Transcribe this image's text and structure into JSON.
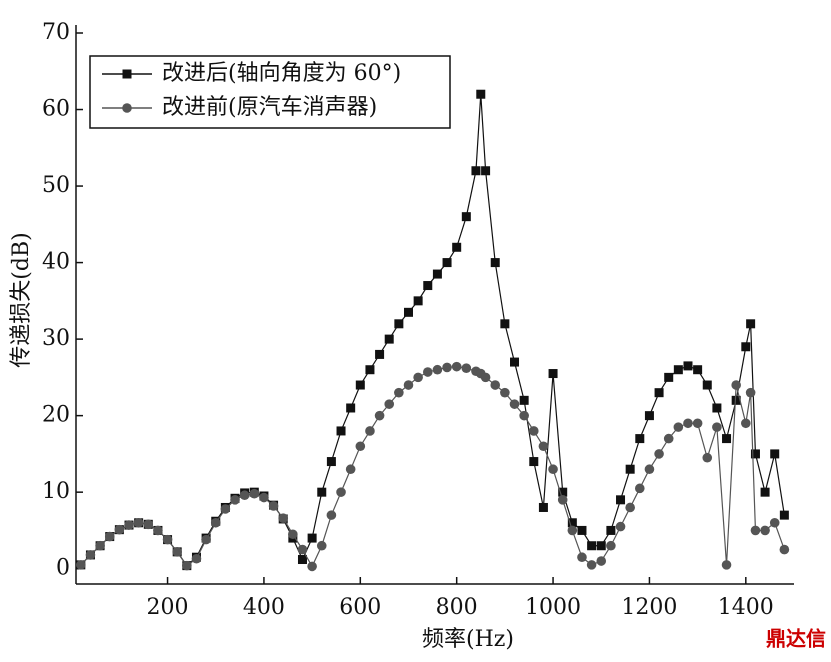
{
  "chart_data": {
    "type": "line",
    "xlabel": "频率(Hz)",
    "ylabel": "传递损失(dB)",
    "watermark": "鼎达信",
    "x": [
      20,
      40,
      60,
      80,
      100,
      120,
      140,
      160,
      180,
      200,
      220,
      240,
      260,
      280,
      300,
      320,
      340,
      360,
      380,
      400,
      420,
      440,
      460,
      480,
      500,
      520,
      540,
      560,
      580,
      600,
      620,
      640,
      660,
      680,
      700,
      720,
      740,
      760,
      780,
      800,
      820,
      840,
      850,
      860,
      880,
      900,
      920,
      940,
      960,
      980,
      1000,
      1020,
      1040,
      1060,
      1080,
      1100,
      1120,
      1140,
      1160,
      1180,
      1200,
      1220,
      1240,
      1260,
      1280,
      1300,
      1320,
      1340,
      1360,
      1380,
      1400,
      1410,
      1420,
      1440,
      1460,
      1480
    ],
    "series": [
      {
        "name": "改进后(轴向角度为 60°)",
        "color": "#111111",
        "marker": "square",
        "values": [
          0.5,
          1.8,
          3,
          4.2,
          5.1,
          5.7,
          6,
          5.8,
          5,
          3.8,
          2.2,
          0.4,
          1.5,
          4,
          6.2,
          8,
          9.2,
          9.9,
          10,
          9.5,
          8.3,
          6.5,
          4,
          1.2,
          4,
          10,
          14,
          18,
          21,
          24,
          26,
          28,
          30,
          32,
          33.5,
          35,
          37,
          38.5,
          40,
          42,
          46,
          52,
          62,
          52,
          40,
          32,
          27,
          22,
          14,
          8,
          25.5,
          10,
          6,
          5,
          3,
          3,
          5,
          9,
          13,
          17,
          20,
          23,
          25,
          26,
          26.5,
          26,
          24,
          21,
          17,
          22,
          29,
          32,
          15,
          10,
          15,
          7
        ]
      },
      {
        "name": "改进前(原汽车消声器)",
        "color": "#555555",
        "marker": "circle",
        "values": [
          0.5,
          1.8,
          3,
          4.2,
          5.1,
          5.7,
          6,
          5.8,
          5,
          3.8,
          2.2,
          0.4,
          1.3,
          3.8,
          6,
          7.8,
          9,
          9.6,
          9.8,
          9.3,
          8.2,
          6.6,
          4.5,
          2.5,
          0.3,
          3,
          7,
          10,
          13,
          16,
          18,
          20,
          21.5,
          23,
          24,
          25,
          25.7,
          26,
          26.3,
          26.4,
          26.2,
          25.8,
          25.5,
          25,
          24,
          23,
          21.5,
          20,
          18,
          16,
          13,
          9,
          5,
          1.5,
          0.5,
          1,
          3,
          5.5,
          8,
          10.5,
          13,
          15,
          17,
          18.5,
          19,
          19,
          14.5,
          18.5,
          0.5,
          24,
          19,
          23,
          5,
          5,
          6,
          2.5
        ]
      }
    ],
    "xlim": [
      10,
      1500
    ],
    "xticks": [
      200,
      400,
      600,
      800,
      1000,
      1200,
      1400
    ],
    "ylim": [
      -2,
      70
    ],
    "yticks": [
      0,
      10,
      20,
      30,
      40,
      50,
      60,
      70
    ],
    "grid": false,
    "legend": "upper left"
  }
}
